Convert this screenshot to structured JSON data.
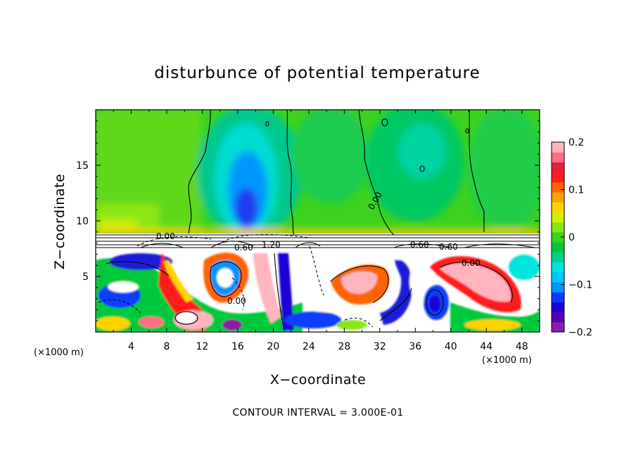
{
  "chart_data": {
    "type": "heatmap",
    "title": "disturbunce of potential temperature",
    "xlabel": "X−coordinate",
    "ylabel": "Z−coordinate",
    "x_unit": "(×1000 m)",
    "x_unit_left": "(×1000 m)",
    "xlim": [
      0,
      50
    ],
    "ylim": [
      0,
      20
    ],
    "x_ticks": [
      4,
      8,
      12,
      16,
      20,
      24,
      28,
      32,
      36,
      40,
      44,
      48
    ],
    "x_tick_labels": [
      "4",
      "8",
      "12",
      "16",
      "20",
      "24",
      "28",
      "32",
      "36",
      "40",
      "44",
      "48"
    ],
    "y_ticks": [
      5,
      10,
      15
    ],
    "y_tick_labels": [
      "5",
      "10",
      "15"
    ],
    "colorbar": {
      "range": [
        -0.2,
        0.2
      ],
      "tick_values": [
        0.2,
        0.1,
        0,
        -0.1,
        -0.2
      ],
      "tick_labels": [
        "0.2",
        "0.1",
        "0",
        "−0.1",
        "−0.2"
      ],
      "colors": [
        "#8b1fa8",
        "#5a00b4",
        "#1e00d8",
        "#0a3cff",
        "#0096ff",
        "#00c8ff",
        "#00e6dc",
        "#00d28c",
        "#00c83c",
        "#3cd21e",
        "#8ce614",
        "#d2f000",
        "#ffd200",
        "#ffa000",
        "#ff6400",
        "#ff1e1e",
        "#e61e3c",
        "#ff6e82",
        "#ffb4be"
      ]
    },
    "contour_labels": [
      "0.00",
      "0.60",
      "1.20",
      "0.60",
      "0.60",
      "0.00",
      "0.00",
      "0.00"
    ],
    "contour_interval_text": "CONTOUR INTERVAL = 3.000E-01",
    "grid": false
  }
}
